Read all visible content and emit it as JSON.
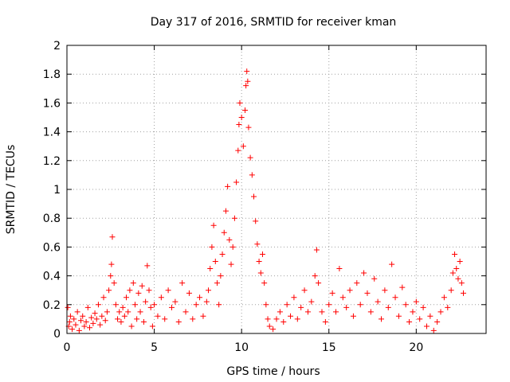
{
  "chart_data": {
    "type": "scatter",
    "title": "Day 317 of 2016, SRMTID for receiver kman",
    "xlabel": "GPS time / hours",
    "ylabel": "SRMTID / TECUs",
    "xlim": [
      0,
      24
    ],
    "ylim": [
      0,
      2
    ],
    "xticks": [
      0,
      5,
      10,
      15,
      20
    ],
    "yticks": [
      0,
      0.2,
      0.4,
      0.6,
      0.8,
      1,
      1.2,
      1.4,
      1.6,
      1.8,
      2
    ],
    "ytick_labels": [
      "0",
      "0.2",
      "0.4",
      "0.6",
      "0.8",
      "1",
      "1.2",
      "1.4",
      "1.6",
      "1.8",
      "2"
    ],
    "grid": true,
    "marker": "+",
    "marker_color": "#ff0000",
    "series": [
      {
        "name": "SRMTID",
        "points": [
          [
            0.05,
            0.18
          ],
          [
            0.1,
            0.05
          ],
          [
            0.15,
            0.08
          ],
          [
            0.2,
            0.12
          ],
          [
            0.3,
            0.03
          ],
          [
            0.4,
            0.1
          ],
          [
            0.5,
            0.06
          ],
          [
            0.6,
            0.15
          ],
          [
            0.7,
            0.02
          ],
          [
            0.8,
            0.09
          ],
          [
            0.9,
            0.12
          ],
          [
            1.0,
            0.05
          ],
          [
            1.1,
            0.08
          ],
          [
            1.2,
            0.18
          ],
          [
            1.3,
            0.04
          ],
          [
            1.4,
            0.11
          ],
          [
            1.5,
            0.07
          ],
          [
            1.6,
            0.14
          ],
          [
            1.7,
            0.1
          ],
          [
            1.8,
            0.2
          ],
          [
            1.9,
            0.06
          ],
          [
            2.0,
            0.12
          ],
          [
            2.1,
            0.25
          ],
          [
            2.2,
            0.09
          ],
          [
            2.3,
            0.15
          ],
          [
            2.4,
            0.3
          ],
          [
            2.5,
            0.4
          ],
          [
            2.55,
            0.48
          ],
          [
            2.6,
            0.67
          ],
          [
            2.7,
            0.35
          ],
          [
            2.8,
            0.2
          ],
          [
            2.9,
            0.1
          ],
          [
            3.0,
            0.15
          ],
          [
            3.1,
            0.08
          ],
          [
            3.2,
            0.18
          ],
          [
            3.3,
            0.12
          ],
          [
            3.4,
            0.25
          ],
          [
            3.5,
            0.15
          ],
          [
            3.6,
            0.3
          ],
          [
            3.7,
            0.05
          ],
          [
            3.8,
            0.35
          ],
          [
            3.9,
            0.2
          ],
          [
            4.0,
            0.1
          ],
          [
            4.1,
            0.28
          ],
          [
            4.2,
            0.15
          ],
          [
            4.3,
            0.33
          ],
          [
            4.4,
            0.08
          ],
          [
            4.5,
            0.22
          ],
          [
            4.6,
            0.47
          ],
          [
            4.7,
            0.3
          ],
          [
            4.8,
            0.18
          ],
          [
            4.9,
            0.05
          ],
          [
            5.0,
            0.2
          ],
          [
            5.2,
            0.12
          ],
          [
            5.4,
            0.25
          ],
          [
            5.6,
            0.1
          ],
          [
            5.8,
            0.3
          ],
          [
            6.0,
            0.18
          ],
          [
            6.2,
            0.22
          ],
          [
            6.4,
            0.08
          ],
          [
            6.6,
            0.35
          ],
          [
            6.8,
            0.15
          ],
          [
            7.0,
            0.28
          ],
          [
            7.2,
            0.1
          ],
          [
            7.4,
            0.2
          ],
          [
            7.6,
            0.25
          ],
          [
            7.8,
            0.12
          ],
          [
            8.0,
            0.22
          ],
          [
            8.1,
            0.3
          ],
          [
            8.2,
            0.45
          ],
          [
            8.3,
            0.6
          ],
          [
            8.4,
            0.75
          ],
          [
            8.5,
            0.5
          ],
          [
            8.6,
            0.35
          ],
          [
            8.7,
            0.2
          ],
          [
            8.8,
            0.4
          ],
          [
            8.9,
            0.55
          ],
          [
            9.0,
            0.7
          ],
          [
            9.1,
            0.85
          ],
          [
            9.2,
            1.02
          ],
          [
            9.3,
            0.65
          ],
          [
            9.4,
            0.48
          ],
          [
            9.5,
            0.6
          ],
          [
            9.6,
            0.8
          ],
          [
            9.7,
            1.05
          ],
          [
            9.8,
            1.27
          ],
          [
            9.85,
            1.45
          ],
          [
            9.9,
            1.6
          ],
          [
            10.0,
            1.5
          ],
          [
            10.1,
            1.3
          ],
          [
            10.2,
            1.55
          ],
          [
            10.25,
            1.72
          ],
          [
            10.3,
            1.82
          ],
          [
            10.35,
            1.75
          ],
          [
            10.4,
            1.43
          ],
          [
            10.5,
            1.22
          ],
          [
            10.6,
            1.1
          ],
          [
            10.7,
            0.95
          ],
          [
            10.8,
            0.78
          ],
          [
            10.9,
            0.62
          ],
          [
            11.0,
            0.5
          ],
          [
            11.1,
            0.42
          ],
          [
            11.2,
            0.55
          ],
          [
            11.3,
            0.35
          ],
          [
            11.4,
            0.2
          ],
          [
            11.5,
            0.1
          ],
          [
            11.6,
            0.05
          ],
          [
            11.8,
            0.03
          ],
          [
            12.0,
            0.1
          ],
          [
            12.2,
            0.15
          ],
          [
            12.4,
            0.08
          ],
          [
            12.6,
            0.2
          ],
          [
            12.8,
            0.12
          ],
          [
            13.0,
            0.25
          ],
          [
            13.2,
            0.1
          ],
          [
            13.4,
            0.18
          ],
          [
            13.6,
            0.3
          ],
          [
            13.8,
            0.15
          ],
          [
            14.0,
            0.22
          ],
          [
            14.2,
            0.4
          ],
          [
            14.3,
            0.58
          ],
          [
            14.4,
            0.35
          ],
          [
            14.6,
            0.15
          ],
          [
            14.8,
            0.08
          ],
          [
            15.0,
            0.2
          ],
          [
            15.2,
            0.28
          ],
          [
            15.4,
            0.15
          ],
          [
            15.6,
            0.45
          ],
          [
            15.8,
            0.25
          ],
          [
            16.0,
            0.18
          ],
          [
            16.2,
            0.3
          ],
          [
            16.4,
            0.12
          ],
          [
            16.6,
            0.35
          ],
          [
            16.8,
            0.2
          ],
          [
            17.0,
            0.42
          ],
          [
            17.2,
            0.28
          ],
          [
            17.4,
            0.15
          ],
          [
            17.6,
            0.38
          ],
          [
            17.8,
            0.22
          ],
          [
            18.0,
            0.1
          ],
          [
            18.2,
            0.3
          ],
          [
            18.4,
            0.18
          ],
          [
            18.6,
            0.48
          ],
          [
            18.8,
            0.25
          ],
          [
            19.0,
            0.12
          ],
          [
            19.2,
            0.32
          ],
          [
            19.4,
            0.2
          ],
          [
            19.6,
            0.08
          ],
          [
            19.8,
            0.15
          ],
          [
            20.0,
            0.22
          ],
          [
            20.2,
            0.1
          ],
          [
            20.4,
            0.18
          ],
          [
            20.6,
            0.05
          ],
          [
            20.8,
            0.12
          ],
          [
            21.0,
            0.02
          ],
          [
            21.2,
            0.08
          ],
          [
            21.4,
            0.15
          ],
          [
            21.6,
            0.25
          ],
          [
            21.8,
            0.18
          ],
          [
            22.0,
            0.3
          ],
          [
            22.1,
            0.42
          ],
          [
            22.2,
            0.55
          ],
          [
            22.3,
            0.45
          ],
          [
            22.4,
            0.38
          ],
          [
            22.5,
            0.5
          ],
          [
            22.6,
            0.35
          ],
          [
            22.7,
            0.28
          ]
        ]
      }
    ]
  }
}
